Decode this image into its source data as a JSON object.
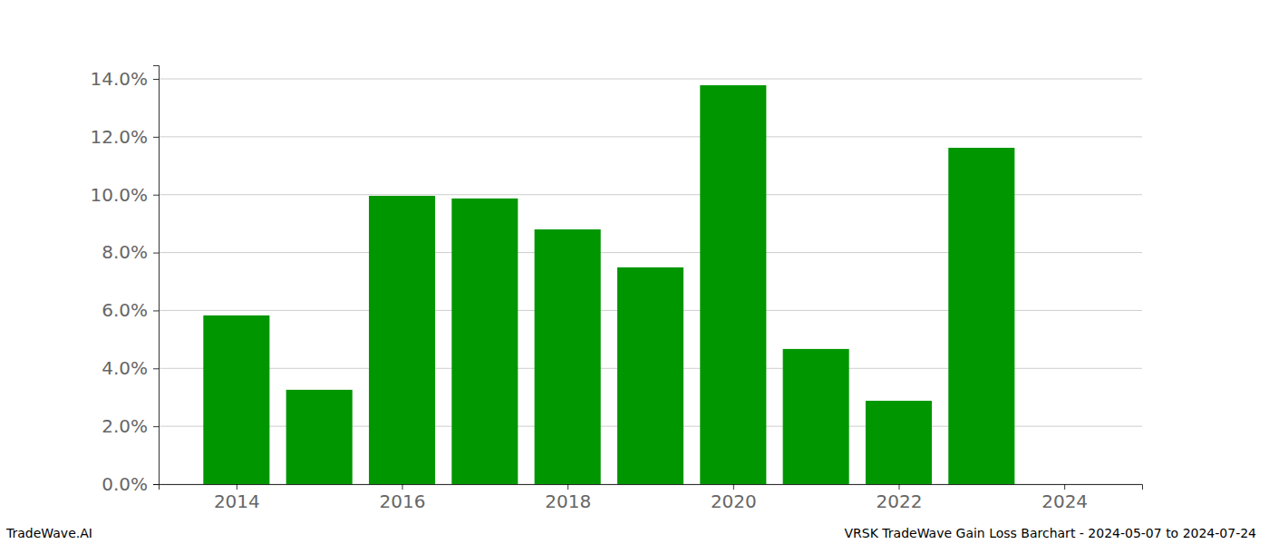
{
  "chart_data": {
    "type": "bar",
    "title": "VRSK TradeWave Gain Loss Barchart - 2024-05-07 to 2024-07-24",
    "source": "TradeWave.AI",
    "x": [
      2014,
      2015,
      2016,
      2017,
      2018,
      2019,
      2020,
      2021,
      2022,
      2023
    ],
    "values": [
      5.83,
      3.26,
      9.96,
      9.87,
      8.8,
      7.49,
      13.78,
      4.67,
      2.88,
      11.62
    ],
    "color": "#009600",
    "xlim": [
      2013.06,
      2024.94
    ],
    "xticks": [
      2014,
      2016,
      2018,
      2020,
      2022,
      2024
    ],
    "ylim": [
      0,
      14.47
    ],
    "yticks": [
      {
        "value": 0,
        "label": "0.0%"
      },
      {
        "value": 2,
        "label": "2.0%"
      },
      {
        "value": 4,
        "label": "4.0%"
      },
      {
        "value": 6,
        "label": "6.0%"
      },
      {
        "value": 8,
        "label": "8.0%"
      },
      {
        "value": 10,
        "label": "10.0%"
      },
      {
        "value": 12,
        "label": "12.0%"
      },
      {
        "value": 14,
        "label": "14.0%"
      }
    ],
    "grid": true
  }
}
